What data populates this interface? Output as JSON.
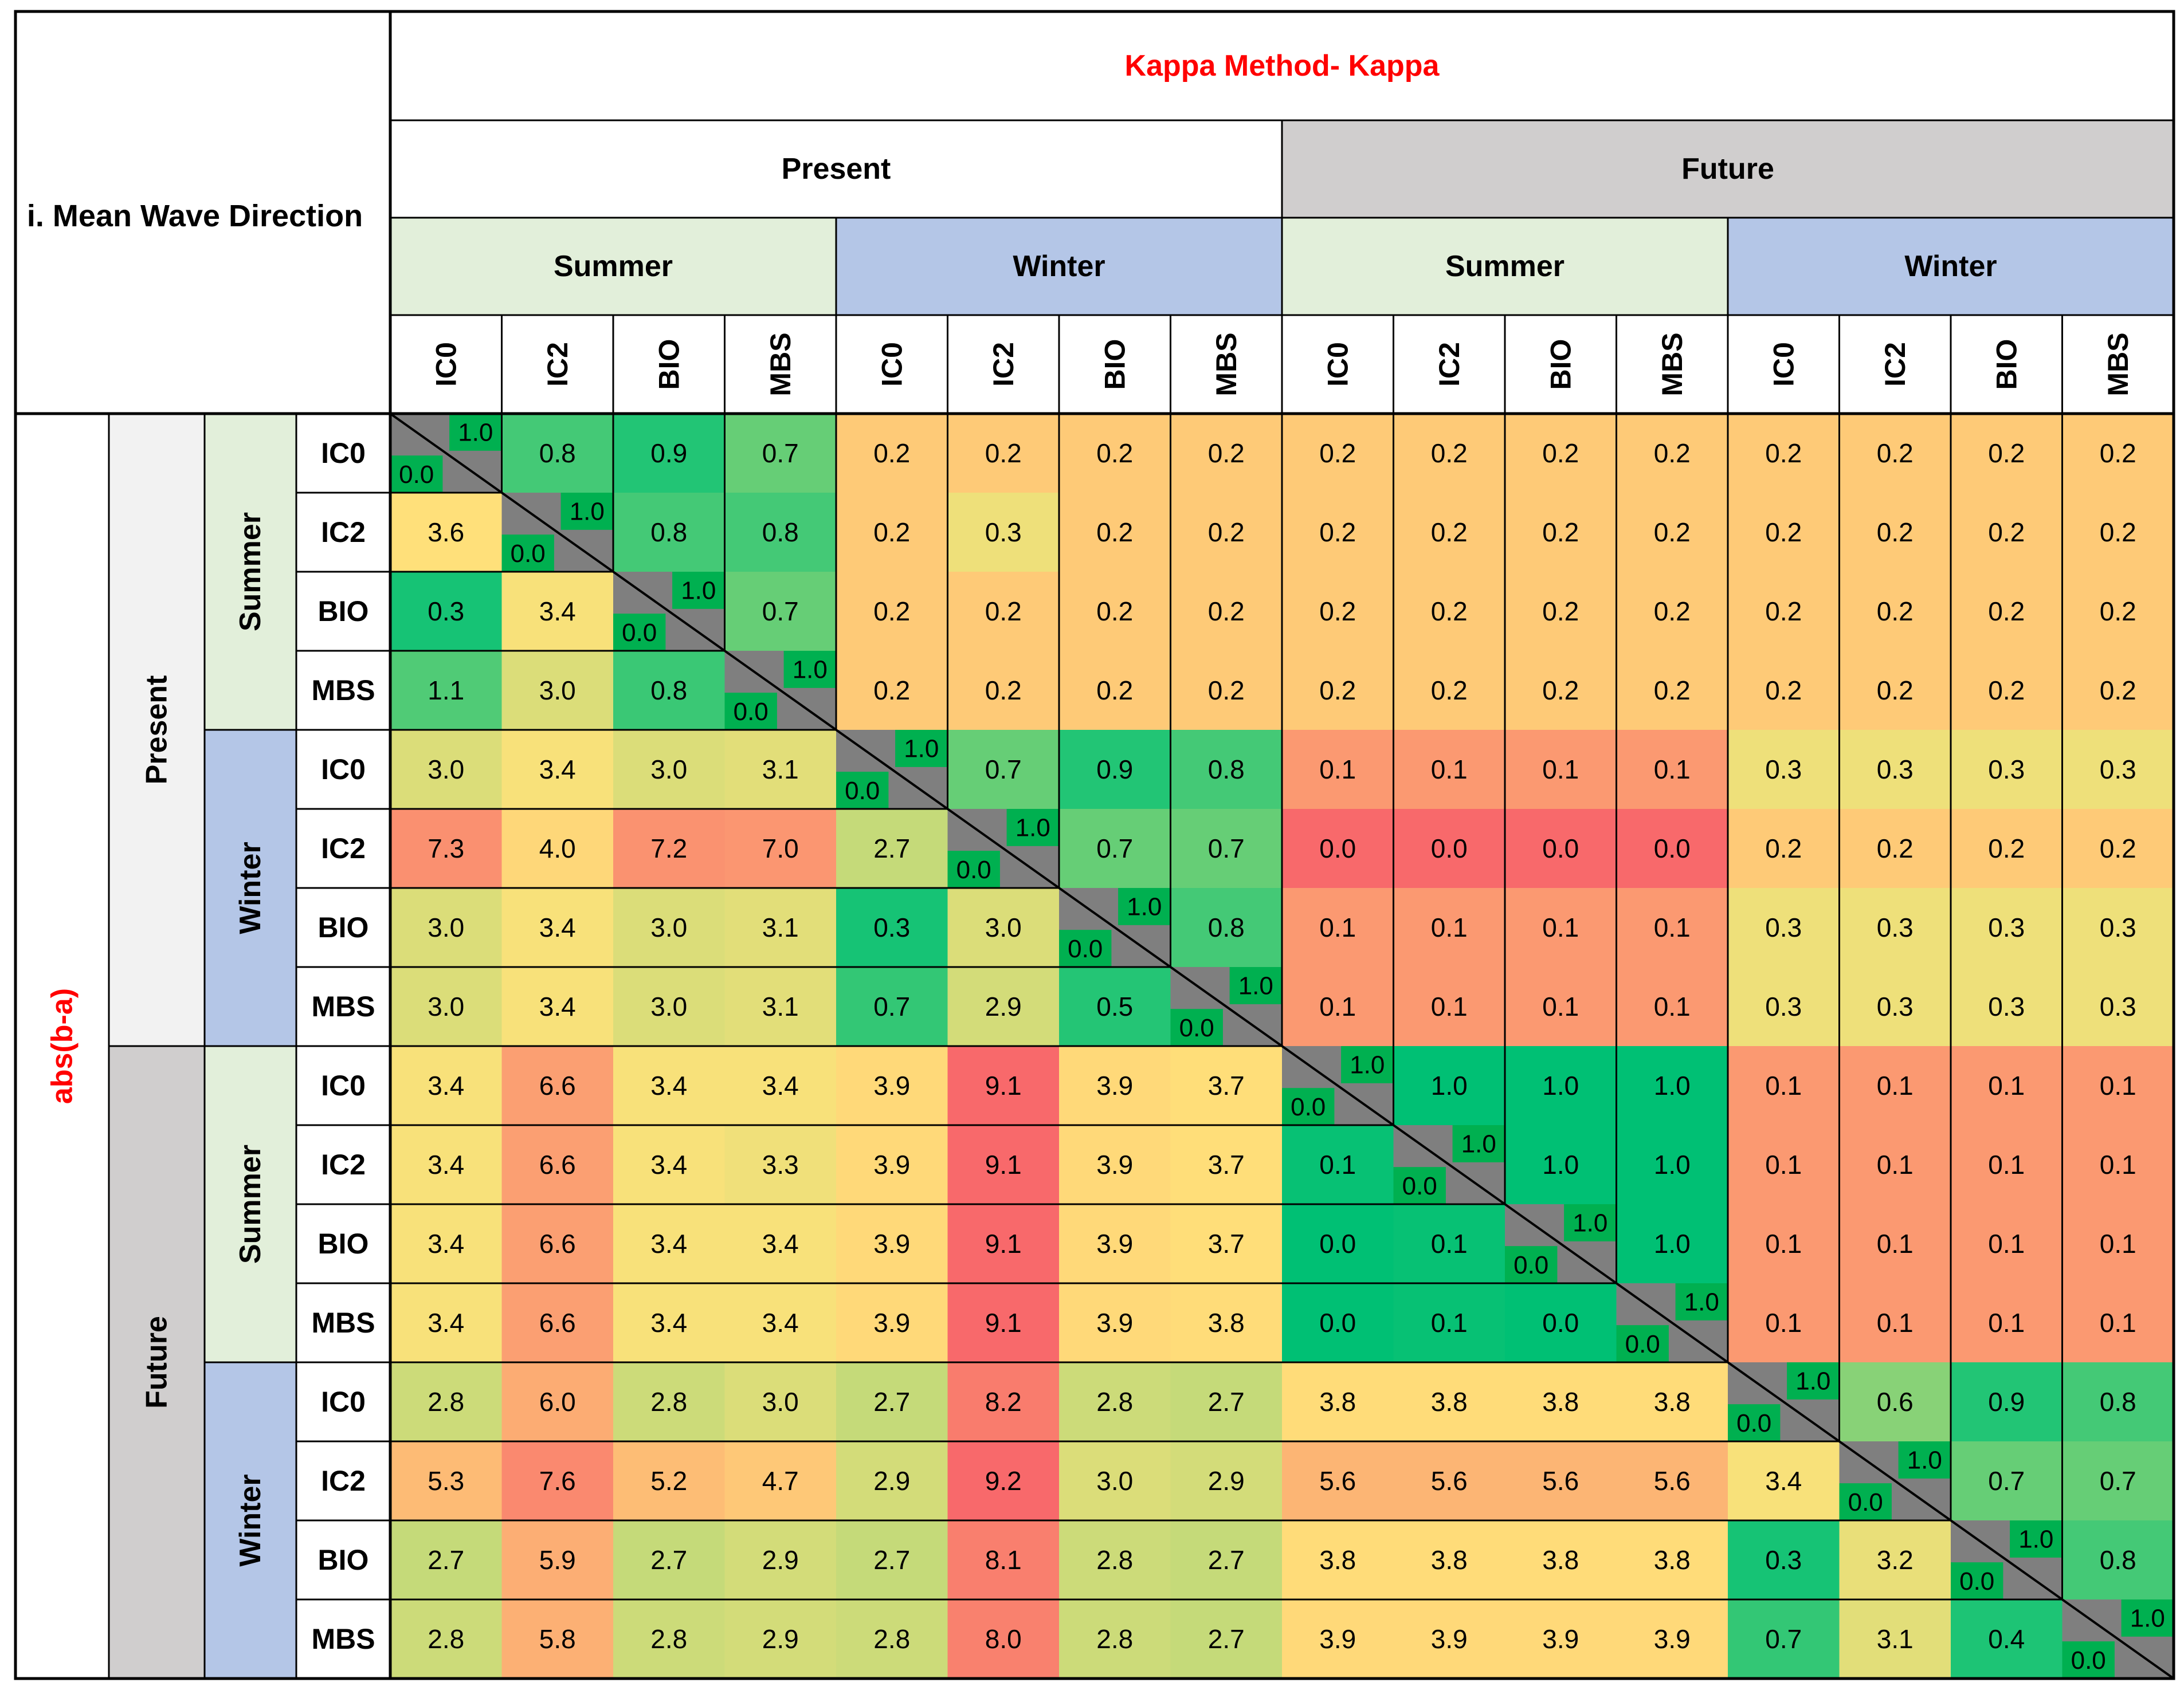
{
  "chart_data": {
    "type": "heatmap",
    "title": "Kappa Method- Kappa",
    "corner_label": "i. Mean Wave Direction",
    "side_label": "abs(b-a)",
    "periods": [
      "Present",
      "Future"
    ],
    "seasons": [
      "Summer",
      "Winter"
    ],
    "models": [
      "IC0",
      "IC2",
      "BIO",
      "MBS"
    ],
    "diagonal": {
      "upper": "1.0",
      "lower": "0.0"
    },
    "colors": {
      "title_red": "#ff0000",
      "present_header": "#ffffff",
      "future_header": "#d0cece",
      "summer_header": "#e2efda",
      "winter_header": "#b4c6e7",
      "present_side": "#f2f2f2",
      "future_side": "#d0cece",
      "diagonal": "#7f7f7f",
      "diag_label": "#00b050",
      "scale_low": "#f8696b",
      "scale_mid": "#ffe27a",
      "scale_high": "#00c074"
    },
    "values": [
      [
        "",
        "0.8",
        "0.9",
        "0.7",
        "0.2",
        "0.2",
        "0.2",
        "0.2",
        "0.2",
        "0.2",
        "0.2",
        "0.2",
        "0.2",
        "0.2",
        "0.2",
        "0.2"
      ],
      [
        "3.6",
        "",
        "0.8",
        "0.8",
        "0.2",
        "0.3",
        "0.2",
        "0.2",
        "0.2",
        "0.2",
        "0.2",
        "0.2",
        "0.2",
        "0.2",
        "0.2",
        "0.2"
      ],
      [
        "0.3",
        "3.4",
        "",
        "0.7",
        "0.2",
        "0.2",
        "0.2",
        "0.2",
        "0.2",
        "0.2",
        "0.2",
        "0.2",
        "0.2",
        "0.2",
        "0.2",
        "0.2"
      ],
      [
        "1.1",
        "3.0",
        "0.8",
        "",
        "0.2",
        "0.2",
        "0.2",
        "0.2",
        "0.2",
        "0.2",
        "0.2",
        "0.2",
        "0.2",
        "0.2",
        "0.2",
        "0.2"
      ],
      [
        "3.0",
        "3.4",
        "3.0",
        "3.1",
        "",
        "0.7",
        "0.9",
        "0.8",
        "0.1",
        "0.1",
        "0.1",
        "0.1",
        "0.3",
        "0.3",
        "0.3",
        "0.3"
      ],
      [
        "7.3",
        "4.0",
        "7.2",
        "7.0",
        "2.7",
        "",
        "0.7",
        "0.7",
        "0.0",
        "0.0",
        "0.0",
        "0.0",
        "0.2",
        "0.2",
        "0.2",
        "0.2"
      ],
      [
        "3.0",
        "3.4",
        "3.0",
        "3.1",
        "0.3",
        "3.0",
        "",
        "0.8",
        "0.1",
        "0.1",
        "0.1",
        "0.1",
        "0.3",
        "0.3",
        "0.3",
        "0.3"
      ],
      [
        "3.0",
        "3.4",
        "3.0",
        "3.1",
        "0.7",
        "2.9",
        "0.5",
        "",
        "0.1",
        "0.1",
        "0.1",
        "0.1",
        "0.3",
        "0.3",
        "0.3",
        "0.3"
      ],
      [
        "3.4",
        "6.6",
        "3.4",
        "3.4",
        "3.9",
        "9.1",
        "3.9",
        "3.7",
        "",
        "1.0",
        "1.0",
        "1.0",
        "0.1",
        "0.1",
        "0.1",
        "0.1"
      ],
      [
        "3.4",
        "6.6",
        "3.4",
        "3.3",
        "3.9",
        "9.1",
        "3.9",
        "3.7",
        "0.1",
        "",
        "1.0",
        "1.0",
        "0.1",
        "0.1",
        "0.1",
        "0.1"
      ],
      [
        "3.4",
        "6.6",
        "3.4",
        "3.4",
        "3.9",
        "9.1",
        "3.9",
        "3.7",
        "0.0",
        "0.1",
        "",
        "1.0",
        "0.1",
        "0.1",
        "0.1",
        "0.1"
      ],
      [
        "3.4",
        "6.6",
        "3.4",
        "3.4",
        "3.9",
        "9.1",
        "3.9",
        "3.8",
        "0.0",
        "0.1",
        "0.0",
        "",
        "0.1",
        "0.1",
        "0.1",
        "0.1"
      ],
      [
        "2.8",
        "6.0",
        "2.8",
        "3.0",
        "2.7",
        "8.2",
        "2.8",
        "2.7",
        "3.8",
        "3.8",
        "3.8",
        "3.8",
        "",
        "0.6",
        "0.9",
        "0.8"
      ],
      [
        "5.3",
        "7.6",
        "5.2",
        "4.7",
        "2.9",
        "9.2",
        "3.0",
        "2.9",
        "5.6",
        "5.6",
        "5.6",
        "5.6",
        "3.4",
        "",
        "0.7",
        "0.7"
      ],
      [
        "2.7",
        "5.9",
        "2.7",
        "2.9",
        "2.7",
        "8.1",
        "2.8",
        "2.7",
        "3.8",
        "3.8",
        "3.8",
        "3.8",
        "0.3",
        "3.2",
        "",
        "0.8"
      ],
      [
        "2.8",
        "5.8",
        "2.8",
        "2.9",
        "2.8",
        "8.0",
        "2.8",
        "2.7",
        "3.9",
        "3.9",
        "3.9",
        "3.9",
        "0.7",
        "3.1",
        "0.4",
        ""
      ]
    ]
  }
}
